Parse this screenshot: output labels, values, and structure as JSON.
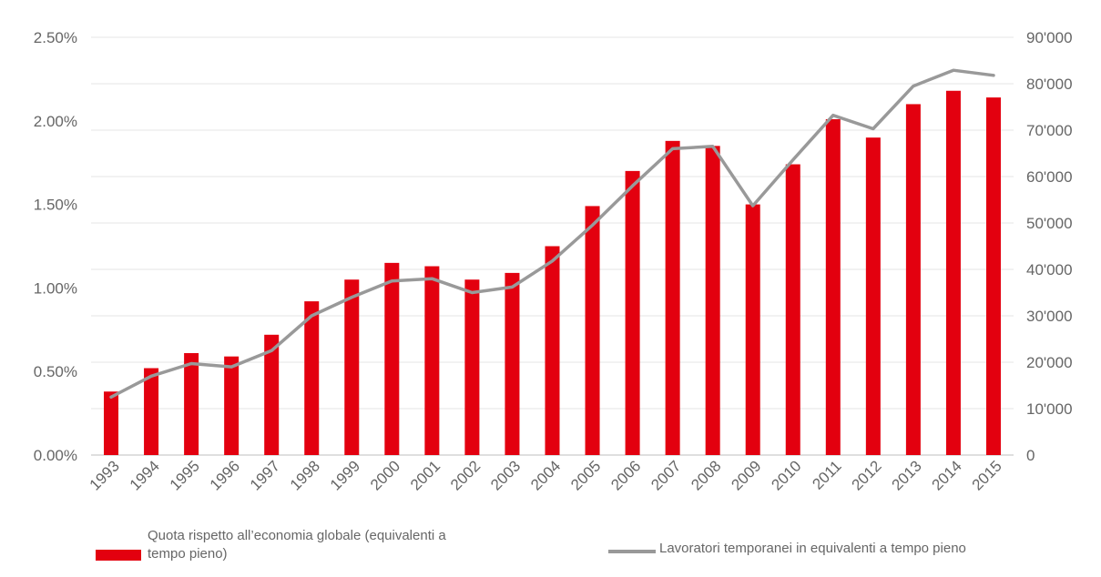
{
  "chart_data": {
    "type": "bar",
    "categories": [
      "1993",
      "1994",
      "1995",
      "1996",
      "1997",
      "1998",
      "1999",
      "2000",
      "2001",
      "2002",
      "2003",
      "2004",
      "2005",
      "2006",
      "2007",
      "2008",
      "2009",
      "2010",
      "2011",
      "2012",
      "2013",
      "2014",
      "2015"
    ],
    "series": [
      {
        "name": "Quota rispetto all’economia globale (equivalenti a tempo pieno)",
        "type": "bar",
        "axis": "left",
        "color": "#e3000f",
        "values": [
          0.0038,
          0.0052,
          0.0061,
          0.0059,
          0.0072,
          0.0092,
          0.0105,
          0.0115,
          0.0113,
          0.0105,
          0.0109,
          0.0125,
          0.0149,
          0.017,
          0.0188,
          0.0185,
          0.015,
          0.0174,
          0.0201,
          0.019,
          0.021,
          0.0218,
          0.0214
        ]
      },
      {
        "name": "Lavoratori temporanei in equivalenti a tempo pieno",
        "type": "line",
        "axis": "right",
        "color": "#999999",
        "values": [
          12500,
          17000,
          19700,
          19000,
          22500,
          30000,
          34000,
          37500,
          38000,
          35000,
          36200,
          41800,
          49500,
          58000,
          66000,
          66500,
          53700,
          63600,
          73200,
          70300,
          79500,
          82900,
          81800
        ]
      }
    ],
    "left_axis": {
      "ylim": [
        0,
        0.025
      ],
      "ticks": [
        0,
        0.005,
        0.01,
        0.015,
        0.02,
        0.025
      ],
      "tick_labels": [
        "0.00%",
        "0.50%",
        "1.00%",
        "1.50%",
        "2.00%",
        "2.50%"
      ]
    },
    "right_axis": {
      "ylim": [
        0,
        90000
      ],
      "ticks": [
        0,
        10000,
        20000,
        30000,
        40000,
        50000,
        60000,
        70000,
        80000,
        90000
      ],
      "tick_labels": [
        "0",
        "10'000",
        "20'000",
        "30'000",
        "40'000",
        "50'000",
        "60'000",
        "70'000",
        "80'000",
        "90'000"
      ]
    },
    "grid": true,
    "legend_position": "bottom"
  },
  "legend": {
    "bar_label_line1": "Quota rispetto all’economia globale (equivalenti a",
    "bar_label_line2": "tempo pieno)",
    "line_label": "Lavoratori temporanei in equivalenti a tempo pieno"
  }
}
